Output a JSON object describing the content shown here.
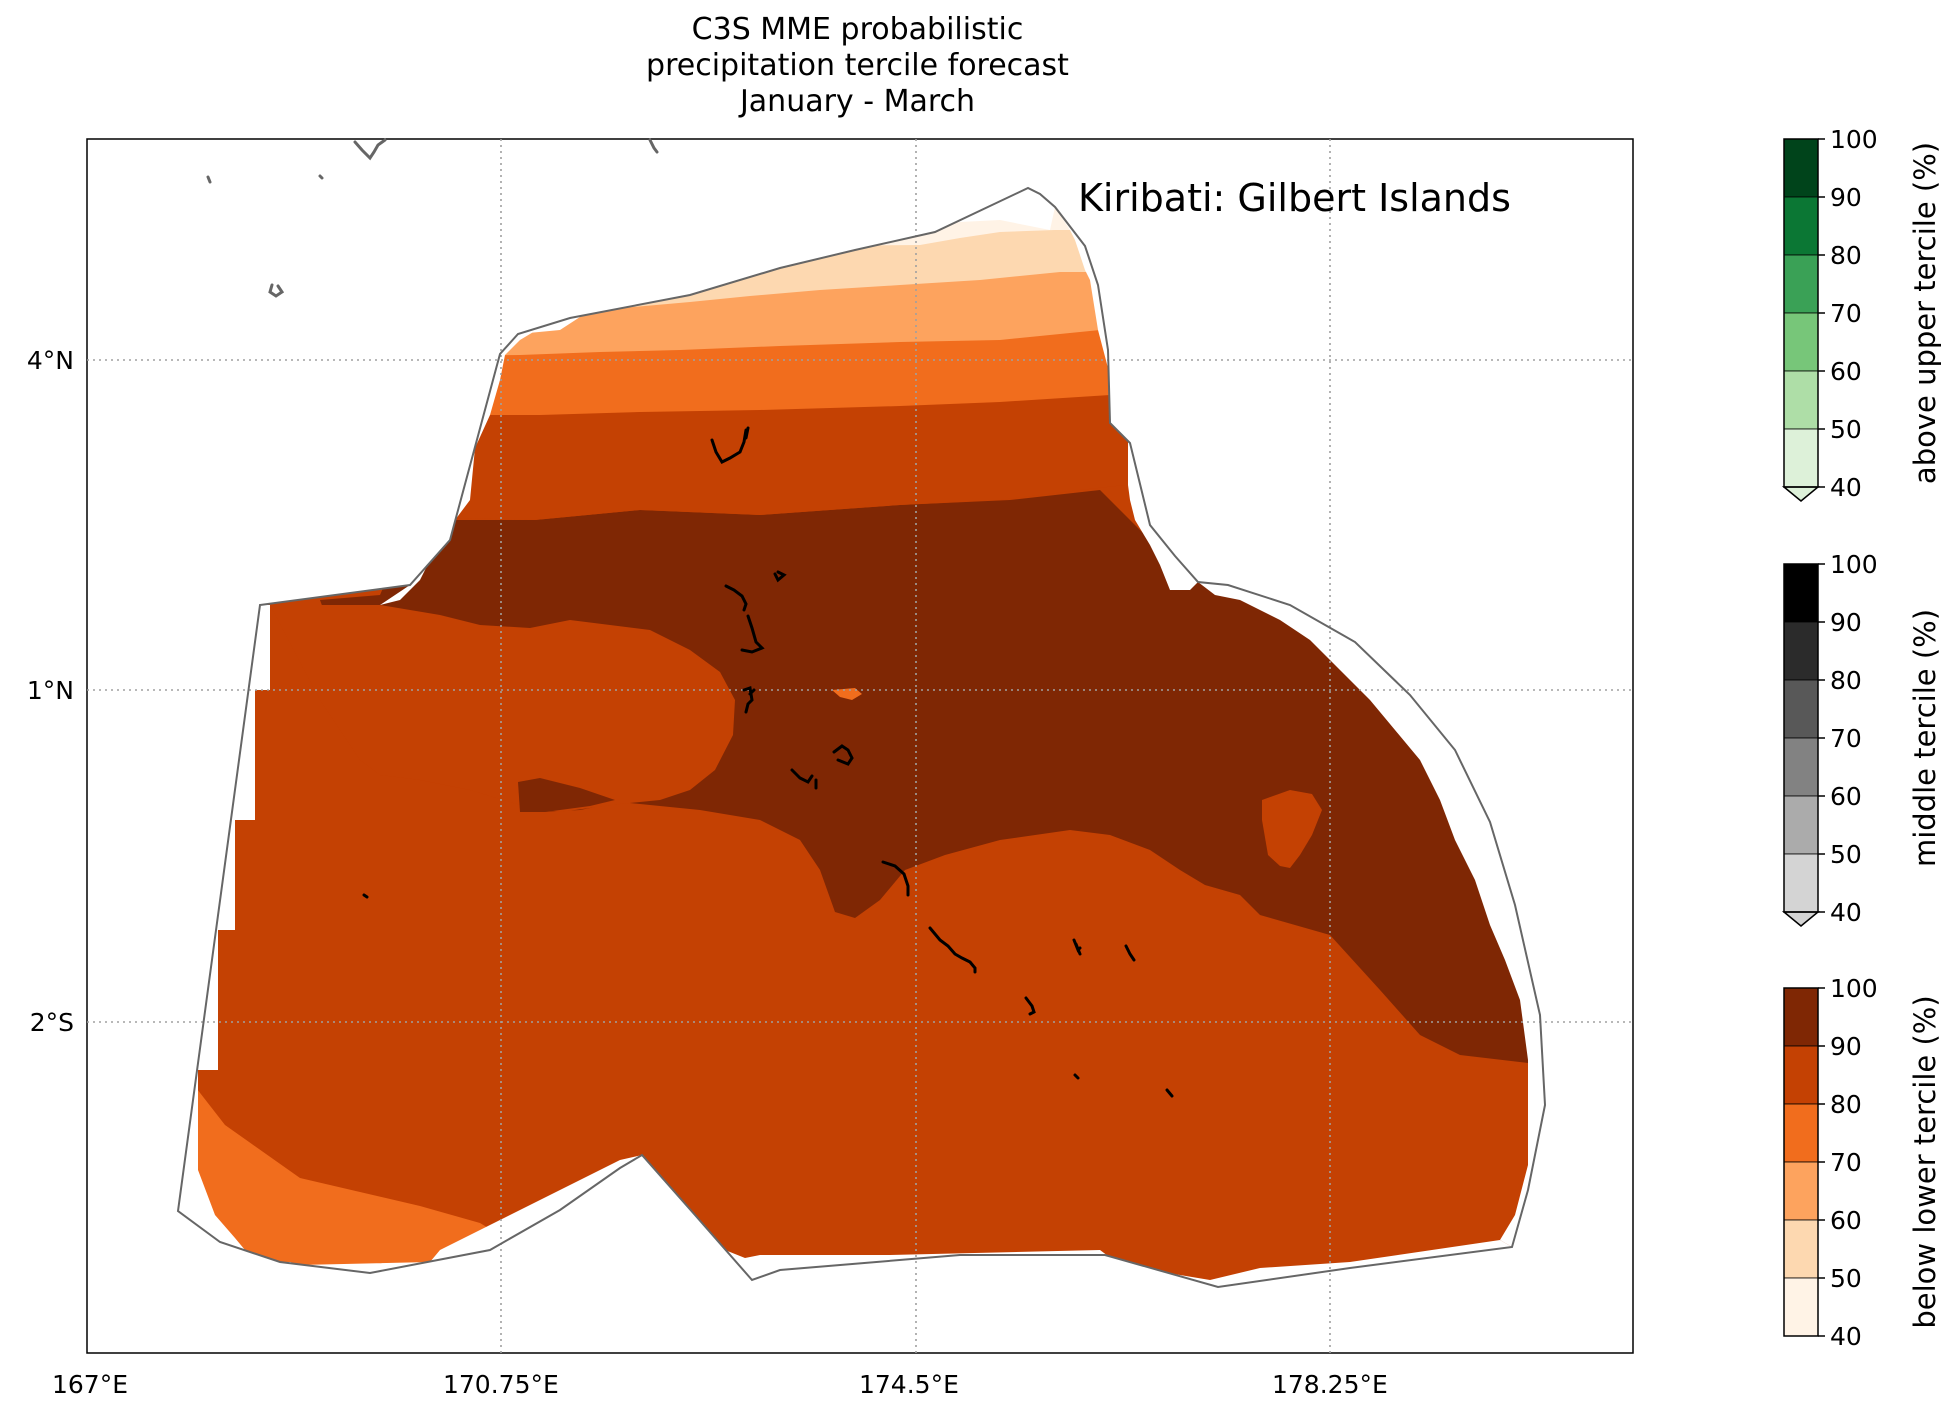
{
  "title": {
    "line1": "C3S MME probabilistic",
    "line2": "precipitation tercile forecast",
    "line3": "January - March"
  },
  "region_label": "Kiribati: Gilbert Islands",
  "axes": {
    "x_ticks": [
      "167°E",
      "170.75°E",
      "174.5°E",
      "178.25°E"
    ],
    "y_ticks": [
      "4°N",
      "1°N",
      "2°S"
    ]
  },
  "colorbars": [
    {
      "name": "above upper tercile",
      "label": "above upper tercile (%)",
      "ticks": [
        "100",
        "90",
        "80",
        "70",
        "60",
        "50",
        "40"
      ],
      "colors": [
        "#00441b",
        "#0b7734",
        "#3aa156",
        "#77c679",
        "#aedea7",
        "#ddf1d9"
      ]
    },
    {
      "name": "middle tercile",
      "label": "middle tercile (%)",
      "ticks": [
        "100",
        "90",
        "80",
        "70",
        "60",
        "50",
        "40"
      ],
      "colors": [
        "#000000",
        "#2b2b2b",
        "#585858",
        "#828282",
        "#ababab",
        "#d4d4d4"
      ]
    },
    {
      "name": "below lower tercile",
      "label": "below lower tercile (%)",
      "ticks": [
        "100",
        "90",
        "80",
        "70",
        "60",
        "50",
        "40"
      ],
      "colors": [
        "#7f2704",
        "#c44103",
        "#f16d1d",
        "#fda35e",
        "#fdd8b0",
        "#fff3e6"
      ]
    }
  ],
  "colors": {
    "dark_brown": "#7f2704",
    "rust": "#c44103",
    "orange": "#f16d1d",
    "light_orange": "#fda35e",
    "peach": "#fdd8b0",
    "cream": "#fff3e6",
    "boundary": "#666666"
  }
}
